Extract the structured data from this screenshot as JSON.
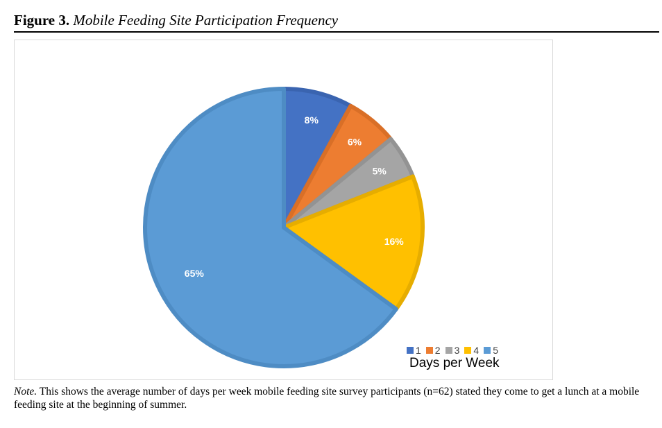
{
  "figure": {
    "label": "Figure 3.",
    "title": "Mobile Feeding Site Participation Frequency"
  },
  "note": {
    "label": "Note.",
    "text": "This shows the average number of days per week mobile feeding site survey participants (n=62) stated they come to get a lunch at a mobile feeding site at the beginning of summer."
  },
  "chart_data": {
    "type": "pie",
    "categories": [
      "1",
      "2",
      "3",
      "4",
      "5"
    ],
    "values": [
      8,
      6,
      5,
      16,
      65
    ],
    "labels": [
      "8%",
      "6%",
      "5%",
      "16%",
      "65%"
    ],
    "colors": [
      "#4472c4",
      "#ed7d31",
      "#a5a5a5",
      "#ffc000",
      "#5b9bd5"
    ],
    "border_colors": [
      "#3a64b0",
      "#d96f27",
      "#939393",
      "#e6ad00",
      "#4e8cc4"
    ],
    "legend_title": "Days per Week",
    "legend_position": "bottom-right",
    "start": "top, clockwise"
  }
}
